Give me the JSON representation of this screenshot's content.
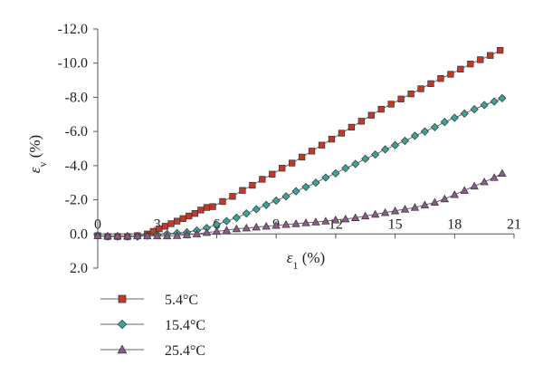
{
  "chart_data": {
    "type": "line",
    "title": "",
    "xlabel": {
      "symbol": "ε",
      "sub": "1",
      "unit": " (%)"
    },
    "ylabel": {
      "symbol": "ε",
      "sub": "v",
      "unit": " (%)"
    },
    "xlim": [
      0,
      21
    ],
    "ylim": [
      2.0,
      -12.0
    ],
    "y_inverted": true,
    "x_axis_crosses_at_y": 0,
    "x_ticks": [
      0,
      3,
      6,
      9,
      12,
      15,
      18,
      21
    ],
    "x_tick_labels": [
      "0",
      "3",
      "6",
      "9",
      "12",
      "15",
      "18",
      "21"
    ],
    "y_ticks": [
      2.0,
      0.0,
      -2.0,
      -4.0,
      -6.0,
      -8.0,
      -10.0,
      -12.0
    ],
    "y_tick_labels": [
      "2.0",
      "0.0",
      "-2.0",
      "-4.0",
      "-6.0",
      "-8.0",
      "-10.0",
      "-12.0"
    ],
    "grid": false,
    "legend_position": "bottom-left",
    "series": [
      {
        "name": "5.4°C",
        "marker": "square",
        "color": "#c0392b",
        "points": [
          [
            0,
            0.1
          ],
          [
            0.5,
            0.15
          ],
          [
            1,
            0.15
          ],
          [
            1.5,
            0.15
          ],
          [
            2,
            0.1
          ],
          [
            2.5,
            0
          ],
          [
            2.8,
            -0.15
          ],
          [
            3.1,
            -0.3
          ],
          [
            3.4,
            -0.45
          ],
          [
            3.7,
            -0.6
          ],
          [
            4,
            -0.75
          ],
          [
            4.3,
            -0.9
          ],
          [
            4.6,
            -1.05
          ],
          [
            4.9,
            -1.2
          ],
          [
            5.2,
            -1.4
          ],
          [
            5.5,
            -1.55
          ],
          [
            5.8,
            -1.6
          ],
          [
            6.3,
            -1.9
          ],
          [
            6.8,
            -2.2
          ],
          [
            7.3,
            -2.55
          ],
          [
            7.8,
            -2.85
          ],
          [
            8.3,
            -3.2
          ],
          [
            8.8,
            -3.5
          ],
          [
            9.3,
            -3.85
          ],
          [
            9.8,
            -4.15
          ],
          [
            10.3,
            -4.5
          ],
          [
            10.8,
            -4.85
          ],
          [
            11.3,
            -5.2
          ],
          [
            11.8,
            -5.55
          ],
          [
            12.3,
            -5.9
          ],
          [
            12.8,
            -6.25
          ],
          [
            13.3,
            -6.6
          ],
          [
            13.8,
            -6.95
          ],
          [
            14.3,
            -7.3
          ],
          [
            14.8,
            -7.6
          ],
          [
            15.3,
            -7.9
          ],
          [
            15.8,
            -8.2
          ],
          [
            16.3,
            -8.5
          ],
          [
            16.8,
            -8.8
          ],
          [
            17.3,
            -9.1
          ],
          [
            17.8,
            -9.35
          ],
          [
            18.3,
            -9.65
          ],
          [
            18.8,
            -9.95
          ],
          [
            19.3,
            -10.2
          ],
          [
            19.8,
            -10.45
          ],
          [
            20.3,
            -10.75
          ]
        ]
      },
      {
        "name": "15.4°C",
        "marker": "diamond",
        "color": "#3aa39a",
        "points": [
          [
            0,
            0.1
          ],
          [
            0.5,
            0.15
          ],
          [
            1,
            0.15
          ],
          [
            1.5,
            0.15
          ],
          [
            2,
            0.15
          ],
          [
            2.5,
            0.1
          ],
          [
            3,
            0.05
          ],
          [
            3.5,
            0
          ],
          [
            4,
            -0.05
          ],
          [
            4.5,
            -0.1
          ],
          [
            5,
            -0.2
          ],
          [
            5.5,
            -0.35
          ],
          [
            6,
            -0.55
          ],
          [
            6.5,
            -0.75
          ],
          [
            7,
            -0.95
          ],
          [
            7.5,
            -1.2
          ],
          [
            8,
            -1.45
          ],
          [
            8.5,
            -1.7
          ],
          [
            9,
            -1.95
          ],
          [
            9.5,
            -2.2
          ],
          [
            10,
            -2.5
          ],
          [
            10.5,
            -2.75
          ],
          [
            11,
            -3.0
          ],
          [
            11.5,
            -3.3
          ],
          [
            12,
            -3.55
          ],
          [
            12.5,
            -3.85
          ],
          [
            13,
            -4.1
          ],
          [
            13.5,
            -4.4
          ],
          [
            14,
            -4.65
          ],
          [
            14.5,
            -4.95
          ],
          [
            15,
            -5.2
          ],
          [
            15.5,
            -5.45
          ],
          [
            16,
            -5.75
          ],
          [
            16.5,
            -6.0
          ],
          [
            17,
            -6.25
          ],
          [
            17.5,
            -6.55
          ],
          [
            18,
            -6.8
          ],
          [
            18.5,
            -7.05
          ],
          [
            19,
            -7.3
          ],
          [
            19.5,
            -7.55
          ],
          [
            20,
            -7.75
          ],
          [
            20.4,
            -7.95
          ]
        ]
      },
      {
        "name": "25.4°C",
        "marker": "triangle",
        "color": "#8e5a8e",
        "points": [
          [
            0,
            0.1
          ],
          [
            0.5,
            0.12
          ],
          [
            1,
            0.12
          ],
          [
            1.5,
            0.12
          ],
          [
            2,
            0.12
          ],
          [
            2.5,
            0.12
          ],
          [
            3,
            0.12
          ],
          [
            3.5,
            0.12
          ],
          [
            4,
            0.1
          ],
          [
            4.5,
            0.05
          ],
          [
            5,
            0
          ],
          [
            5.5,
            -0.08
          ],
          [
            6,
            -0.15
          ],
          [
            6.5,
            -0.22
          ],
          [
            7,
            -0.3
          ],
          [
            7.5,
            -0.35
          ],
          [
            8,
            -0.4
          ],
          [
            8.5,
            -0.45
          ],
          [
            9,
            -0.5
          ],
          [
            9.5,
            -0.55
          ],
          [
            10,
            -0.6
          ],
          [
            10.5,
            -0.65
          ],
          [
            11,
            -0.7
          ],
          [
            11.5,
            -0.75
          ],
          [
            12,
            -0.82
          ],
          [
            12.5,
            -0.88
          ],
          [
            13,
            -0.95
          ],
          [
            13.5,
            -1.05
          ],
          [
            14,
            -1.15
          ],
          [
            14.5,
            -1.25
          ],
          [
            15,
            -1.35
          ],
          [
            15.5,
            -1.45
          ],
          [
            16,
            -1.55
          ],
          [
            16.5,
            -1.7
          ],
          [
            17,
            -1.85
          ],
          [
            17.5,
            -2.05
          ],
          [
            18,
            -2.3
          ],
          [
            18.5,
            -2.55
          ],
          [
            19,
            -2.8
          ],
          [
            19.5,
            -3.05
          ],
          [
            20,
            -3.3
          ],
          [
            20.4,
            -3.55
          ]
        ]
      }
    ]
  }
}
